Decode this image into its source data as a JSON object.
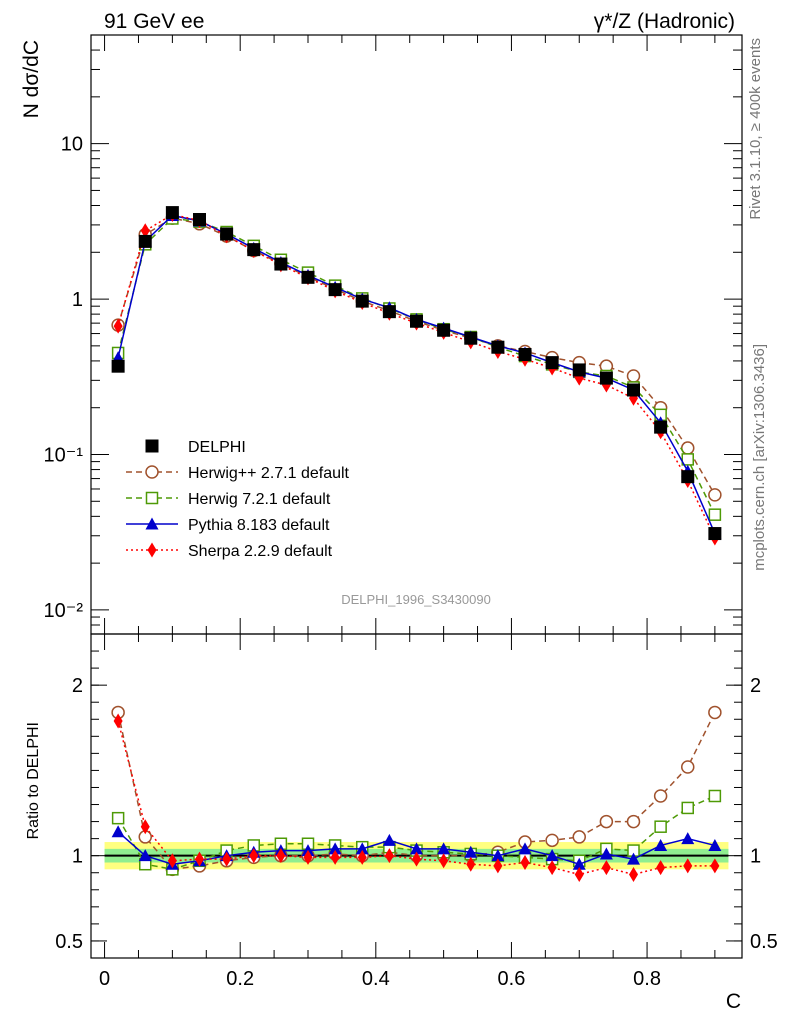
{
  "header": {
    "left_label": "91 GeV ee",
    "right_label": "γ*/Z (Hadronic)"
  },
  "side": {
    "rivet_label": "Rivet 3.1.10, ≥ 400k events",
    "source_label": "mcplots.cern.ch [arXiv:1306.3436]"
  },
  "colors": {
    "data": "#000000",
    "herwigpp": "#a0522d",
    "herwig7": "#4e9a06",
    "pythia": "#0000cc",
    "sherpa": "#ff0000",
    "band_inner": "#90ee90",
    "band_outer": "#ffff80"
  },
  "chart_data": [
    {
      "type": "line",
      "scale": "log",
      "title": "",
      "analysis_label": "DELPHI_1996_S3430090",
      "xlabel": "C",
      "ylabel": "N dσ/dC",
      "xlim": [
        -0.02,
        0.94
      ],
      "ylim": [
        0.007,
        50
      ],
      "yticks": [
        0.01,
        0.1,
        1,
        10
      ],
      "ytick_labels": [
        "10⁻²",
        "10⁻¹",
        "1",
        "10"
      ],
      "x": [
        0.02,
        0.06,
        0.1,
        0.14,
        0.18,
        0.22,
        0.26,
        0.3,
        0.34,
        0.38,
        0.42,
        0.46,
        0.5,
        0.54,
        0.58,
        0.62,
        0.66,
        0.7,
        0.74,
        0.78,
        0.82,
        0.86,
        0.9
      ],
      "legend_position": "middle-left",
      "series": [
        {
          "name": "DELPHI",
          "key": "data",
          "marker": "square-filled",
          "line": "none",
          "values": [
            0.37,
            2.35,
            3.6,
            3.25,
            2.62,
            2.08,
            1.68,
            1.38,
            1.15,
            0.97,
            0.83,
            0.72,
            0.63,
            0.56,
            0.49,
            0.44,
            0.39,
            0.35,
            0.31,
            0.26,
            0.15,
            0.072,
            0.031
          ]
        },
        {
          "name": "Herwig++ 2.7.1 default",
          "key": "herwigpp",
          "marker": "circle-open",
          "line": "dashed",
          "values": [
            0.68,
            2.6,
            3.32,
            3.05,
            2.54,
            2.05,
            1.69,
            1.39,
            1.16,
            0.97,
            0.84,
            0.72,
            0.63,
            0.56,
            0.5,
            0.46,
            0.42,
            0.39,
            0.37,
            0.32,
            0.2,
            0.11,
            0.055
          ]
        },
        {
          "name": "Herwig 7.2.1 default",
          "key": "herwig7",
          "marker": "square-open",
          "line": "dashed",
          "values": [
            0.45,
            2.25,
            3.3,
            3.15,
            2.7,
            2.2,
            1.79,
            1.48,
            1.22,
            1.01,
            0.87,
            0.74,
            0.64,
            0.57,
            0.49,
            0.43,
            0.38,
            0.34,
            0.32,
            0.27,
            0.18,
            0.093,
            0.041
          ]
        },
        {
          "name": "Pythia 8.183 default",
          "key": "pythia",
          "marker": "triangle-filled",
          "line": "solid",
          "values": [
            0.42,
            2.35,
            3.45,
            3.18,
            2.62,
            2.12,
            1.72,
            1.42,
            1.19,
            1.0,
            0.88,
            0.74,
            0.65,
            0.57,
            0.5,
            0.45,
            0.39,
            0.34,
            0.31,
            0.26,
            0.16,
            0.078,
            0.031
          ]
        },
        {
          "name": "Sherpa 2.2.9 default",
          "key": "sherpa",
          "marker": "diamond-filled",
          "line": "dotted",
          "values": [
            0.67,
            2.75,
            3.5,
            3.2,
            2.55,
            2.05,
            1.66,
            1.37,
            1.13,
            0.95,
            0.81,
            0.7,
            0.61,
            0.53,
            0.46,
            0.41,
            0.36,
            0.31,
            0.28,
            0.23,
            0.14,
            0.068,
            0.029
          ]
        }
      ]
    },
    {
      "type": "line",
      "scale": "linear",
      "xlabel": "C",
      "ylabel": "Ratio to DELPHI",
      "xlim": [
        -0.02,
        0.94
      ],
      "ylim": [
        0.4,
        2.3
      ],
      "yticks": [
        0.5,
        1,
        2
      ],
      "ytick_labels": [
        "0.5",
        "1",
        "2"
      ],
      "xticks": [
        0,
        0.2,
        0.4,
        0.6,
        0.8
      ],
      "xtick_labels": [
        "0",
        "0.2",
        "0.4",
        "0.6",
        "0.8"
      ],
      "x": [
        0.02,
        0.06,
        0.1,
        0.14,
        0.18,
        0.22,
        0.26,
        0.3,
        0.34,
        0.38,
        0.42,
        0.46,
        0.5,
        0.54,
        0.58,
        0.62,
        0.66,
        0.7,
        0.74,
        0.78,
        0.82,
        0.86,
        0.9
      ],
      "reference_line": 1,
      "band_inner": 0.04,
      "band_outer": 0.08,
      "series": [
        {
          "name": "Herwig++ 2.7.1 default",
          "key": "herwigpp",
          "marker": "circle-open",
          "line": "dashed",
          "values": [
            1.84,
            1.11,
            0.92,
            0.94,
            0.97,
            0.99,
            1.0,
            1.0,
            1.01,
            1.0,
            1.02,
            1.0,
            1.0,
            1.0,
            1.02,
            1.08,
            1.09,
            1.11,
            1.2,
            1.2,
            1.35,
            1.52,
            1.84
          ]
        },
        {
          "name": "Herwig 7.2.1 default",
          "key": "herwig7",
          "marker": "square-open",
          "line": "dashed",
          "values": [
            1.22,
            0.95,
            0.92,
            0.97,
            1.03,
            1.06,
            1.07,
            1.07,
            1.06,
            1.05,
            1.05,
            1.03,
            1.02,
            1.01,
            1.0,
            0.99,
            0.98,
            0.97,
            1.04,
            1.03,
            1.17,
            1.28,
            1.35
          ]
        },
        {
          "name": "Pythia 8.183 default",
          "key": "pythia",
          "marker": "triangle-filled",
          "line": "solid",
          "values": [
            1.14,
            1.0,
            0.95,
            0.97,
            1.0,
            1.02,
            1.03,
            1.03,
            1.04,
            1.04,
            1.09,
            1.04,
            1.04,
            1.02,
            1.0,
            1.04,
            1.0,
            0.95,
            1.01,
            0.98,
            1.06,
            1.1,
            1.06
          ]
        },
        {
          "name": "Sherpa 2.2.9 default",
          "key": "sherpa",
          "marker": "diamond-filled",
          "line": "dotted",
          "values": [
            1.79,
            1.17,
            0.97,
            0.98,
            0.98,
            1.0,
            1.0,
            0.99,
            0.99,
            0.99,
            1.0,
            0.98,
            0.97,
            0.95,
            0.94,
            0.96,
            0.93,
            0.89,
            0.93,
            0.89,
            0.93,
            0.94,
            0.94
          ]
        }
      ]
    }
  ]
}
